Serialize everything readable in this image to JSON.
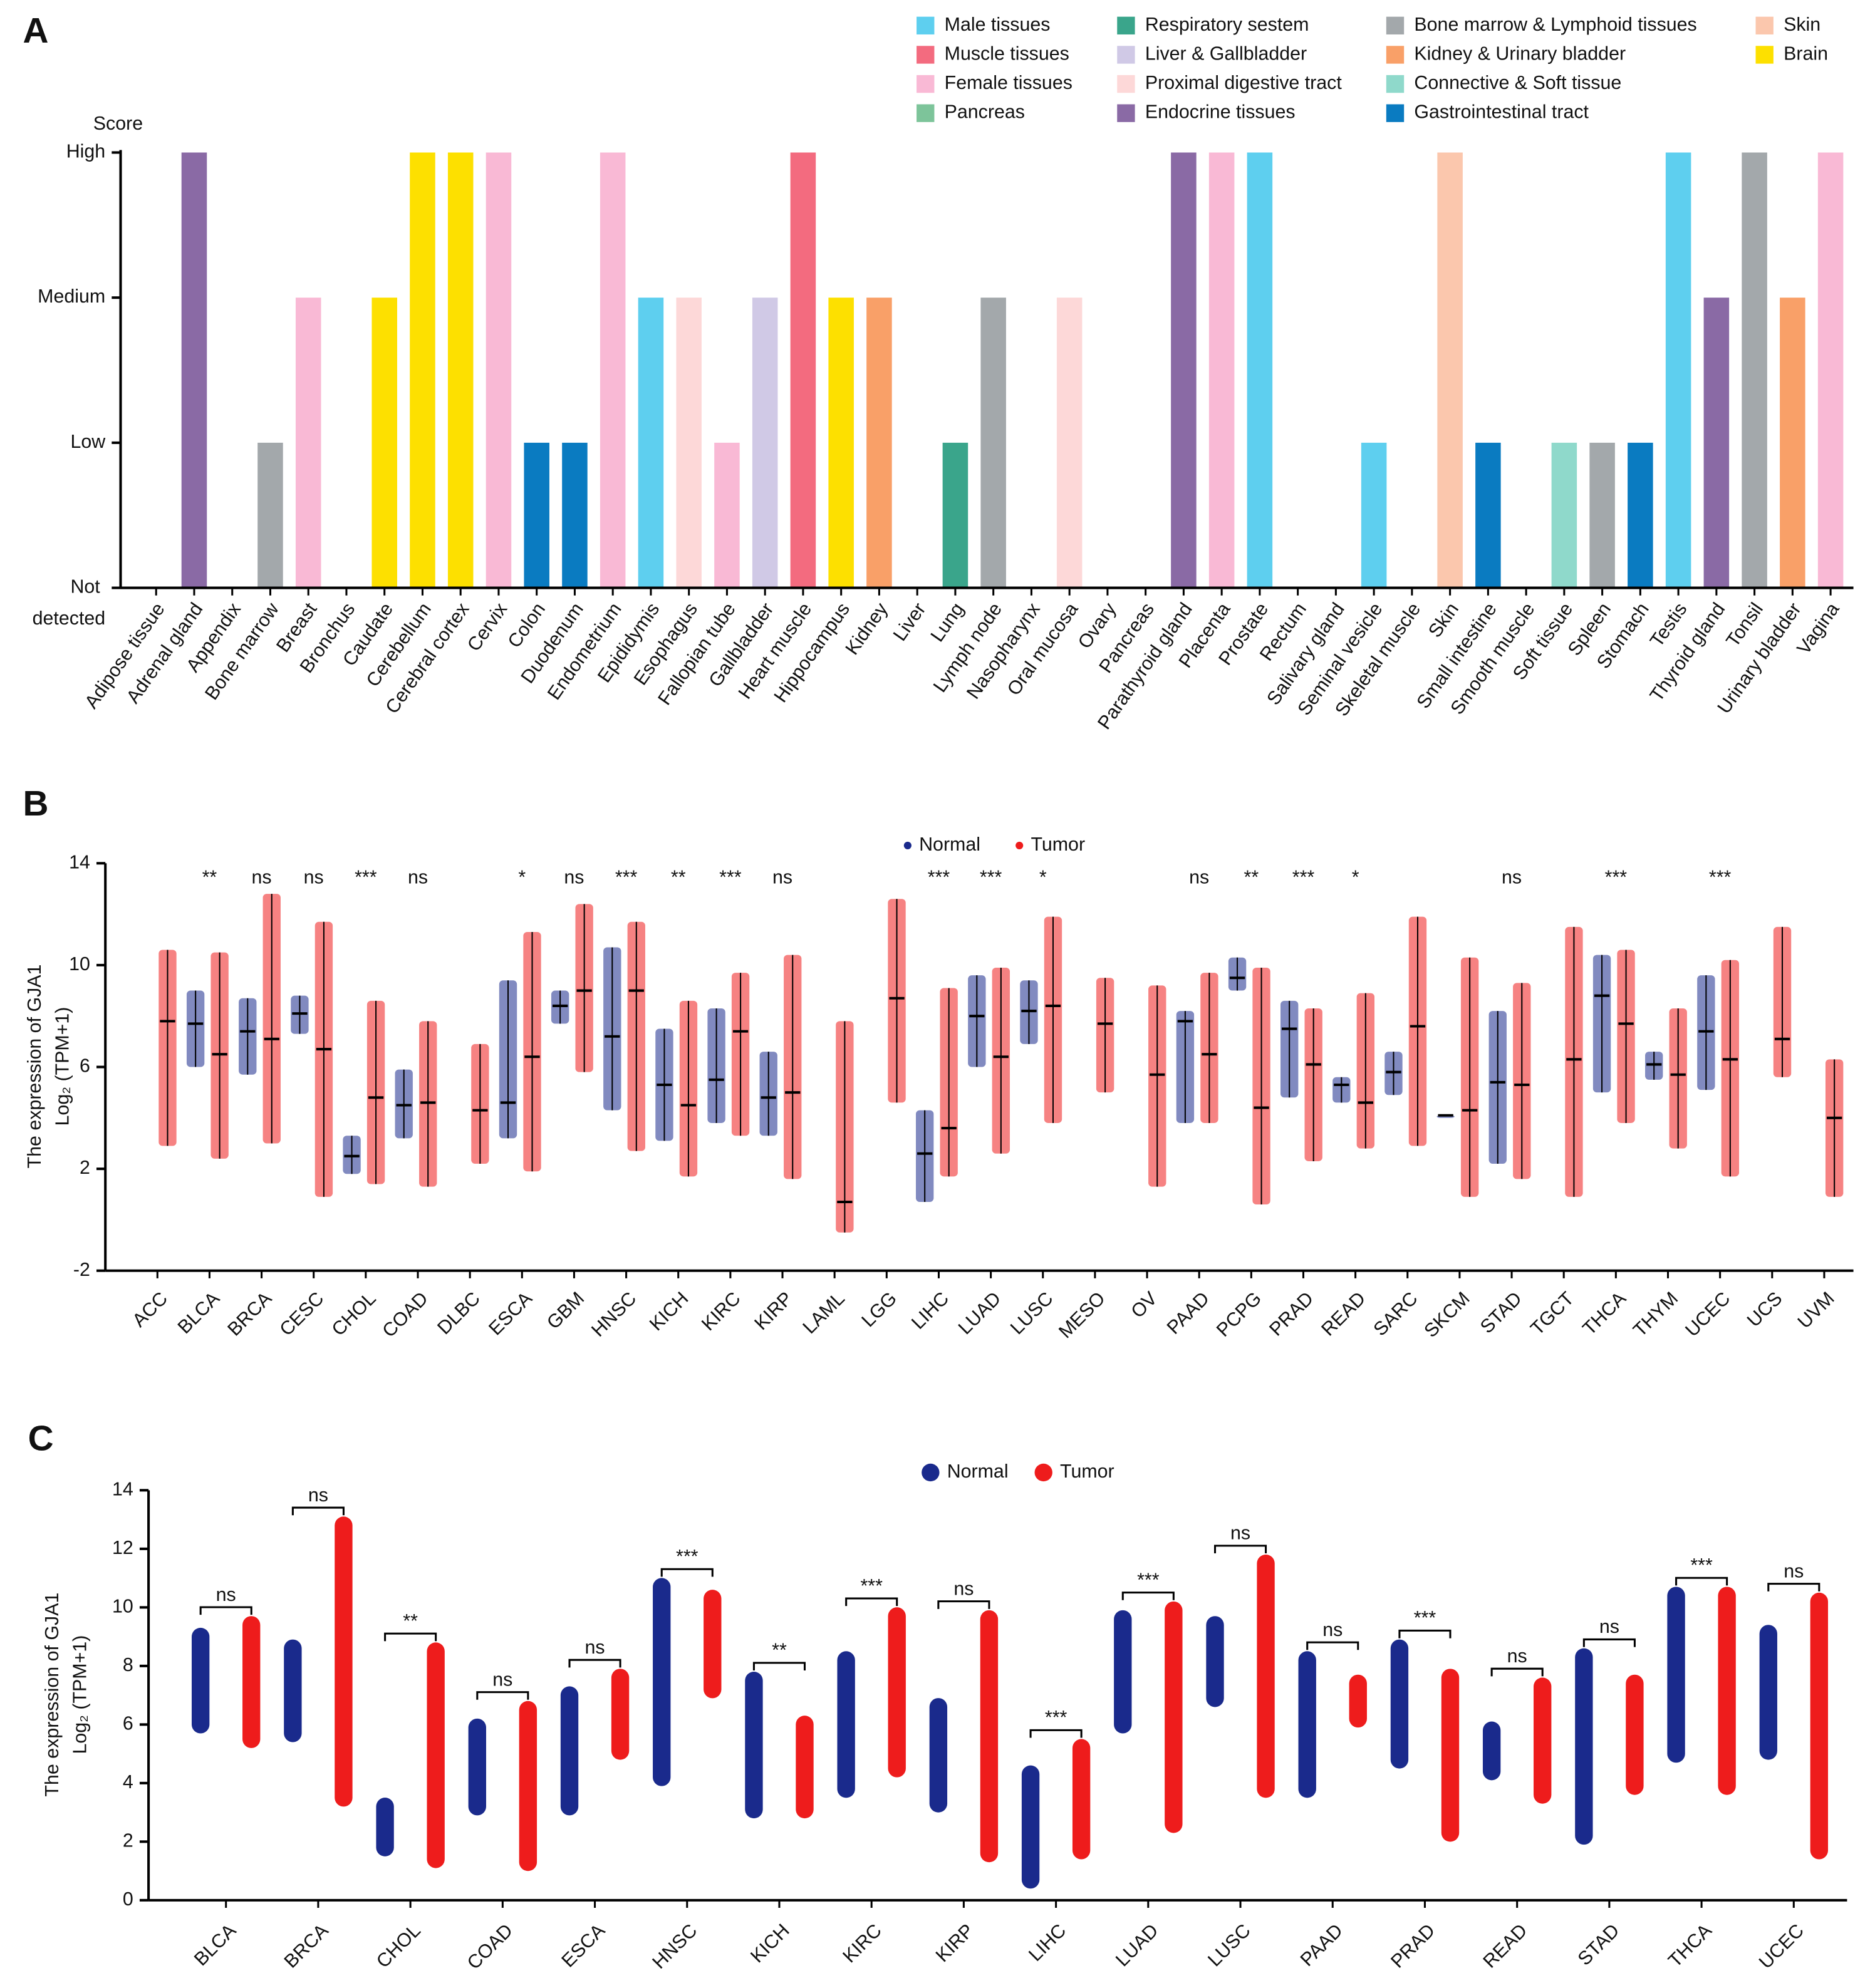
{
  "chart_data": [
    {
      "type": "bar",
      "panel": "A",
      "y_label": "Score",
      "categories": [
        "Adipose tissue",
        "Adrenal gland",
        "Appendix",
        "Bone marrow",
        "Breast",
        "Bronchus",
        "Caudate",
        "Cerebellum",
        "Cerebral cortex",
        "Cervix",
        "Colon",
        "Duodenum",
        "Endometrium",
        "Epididymis",
        "Esophagus",
        "Fallopian tube",
        "Gallbladder",
        "Heart muscle",
        "Hippocampus",
        "Kidney",
        "Liver",
        "Lung",
        "Lymph node",
        "Nasopharynx",
        "Oral mucosa",
        "Ovary",
        "Pancreas",
        "Parathyroid gland",
        "Placenta",
        "Prostate",
        "Rectum",
        "Salivary gland",
        "Seminal vesicle",
        "Skeletal muscle",
        "Skin",
        "Small intestine",
        "Smooth muscle",
        "Soft tissue",
        "Spleen",
        "Stomach",
        "Testis",
        "Thyroid gland",
        "Tonsil",
        "Urinary bladder",
        "Vagina"
      ],
      "values": [
        0,
        3,
        0,
        1,
        2,
        0,
        2,
        3,
        3,
        3,
        1,
        1,
        3,
        2,
        2,
        1,
        2,
        3,
        2,
        2,
        0,
        1,
        2,
        0,
        2,
        0,
        0,
        3,
        3,
        3,
        0,
        0,
        1,
        0,
        3,
        1,
        0,
        1,
        1,
        1,
        3,
        2,
        3,
        2,
        3
      ],
      "colors": [
        "#8a6aa5",
        "#8a6aa5",
        "#0a7bc1",
        "#a3a8ab",
        "#f9b9d5",
        "#3aa58b",
        "#fde000",
        "#fde000",
        "#fde000",
        "#f9b9d5",
        "#0a7bc1",
        "#0a7bc1",
        "#f9b9d5",
        "#5ecfef",
        "#fdd8d8",
        "#f9b9d5",
        "#d0c9e6",
        "#f36b7f",
        "#fde000",
        "#f9a068",
        "#d0c9e6",
        "#3aa58b",
        "#a3a8ab",
        "#3aa58b",
        "#fdd8d8",
        "#f9b9d5",
        "#7dc49a",
        "#8a6aa5",
        "#f9b9d5",
        "#5ecfef",
        "#0a7bc1",
        "#fdd8d8",
        "#5ecfef",
        "#f36b7f",
        "#fbc7ad",
        "#0a7bc1",
        "#f36b7f",
        "#8fd9cb",
        "#a3a8ab",
        "#0a7bc1",
        "#5ecfef",
        "#8a6aa5",
        "#a3a8ab",
        "#f9a068",
        "#f9b9d5"
      ],
      "legend": [
        {
          "name": "Male tissues",
          "color": "#5ecfef"
        },
        {
          "name": "Muscle tissues",
          "color": "#f36b7f"
        },
        {
          "name": "Female tissues",
          "color": "#f9b9d5"
        },
        {
          "name": "Pancreas",
          "color": "#7dc49a"
        },
        {
          "name": "Respiratory sestem",
          "color": "#3aa58b"
        },
        {
          "name": "Liver & Gallbladder",
          "color": "#d0c9e6"
        },
        {
          "name": "Proximal digestive tract",
          "color": "#fdd8d8"
        },
        {
          "name": "Endocrine tissues",
          "color": "#8a6aa5"
        },
        {
          "name": "Bone marrow & Lymphoid tissues",
          "color": "#a3a8ab"
        },
        {
          "name": "Kidney & Urinary bladder",
          "color": "#f9a068"
        },
        {
          "name": "Connective & Soft tissue",
          "color": "#8fd9cb"
        },
        {
          "name": "Gastrointestinal tract",
          "color": "#0a7bc1"
        },
        {
          "name": "Skin",
          "color": "#fbc7ad"
        },
        {
          "name": "Brain",
          "color": "#fde000"
        }
      ],
      "ylim": [
        0,
        3
      ],
      "yticks": [
        {
          "value": 0,
          "label": "Not detected"
        },
        {
          "value": 1,
          "label": "Low"
        },
        {
          "value": 2,
          "label": "Medium"
        },
        {
          "value": 3,
          "label": "High"
        }
      ]
    },
    {
      "type": "strip",
      "panel": "B",
      "y_label": [
        "The expression of GJA1",
        "Log₂ (TPM+1)"
      ],
      "categories": [
        "ACC",
        "BLCA",
        "BRCA",
        "CESC",
        "CHOL",
        "COAD",
        "DLBC",
        "ESCA",
        "GBM",
        "HNSC",
        "KICH",
        "KIRC",
        "KIRP",
        "LAML",
        "LGG",
        "LIHC",
        "LUAD",
        "LUSC",
        "MESO",
        "OV",
        "PAAD",
        "PCPG",
        "PRAD",
        "READ",
        "SARC",
        "SKCM",
        "STAD",
        "TGCT",
        "THCA",
        "THYM",
        "UCEC",
        "UCS",
        "UVM"
      ],
      "significance": [
        null,
        "**",
        "ns",
        "ns",
        "***",
        "ns",
        null,
        "*",
        "ns",
        "***",
        "**",
        "***",
        "ns",
        null,
        null,
        "***",
        "***",
        "*",
        null,
        null,
        "ns",
        "**",
        "***",
        "*",
        null,
        null,
        "ns",
        null,
        "***",
        null,
        "***",
        null,
        null
      ],
      "series": [
        {
          "name": "Normal",
          "color": "#1a2a8c",
          "min": [
            null,
            6.0,
            5.7,
            7.3,
            1.8,
            3.2,
            null,
            3.2,
            7.7,
            4.3,
            3.1,
            3.8,
            3.3,
            null,
            null,
            0.7,
            6.0,
            6.9,
            null,
            null,
            3.8,
            9.0,
            4.8,
            4.6,
            4.9,
            4.1,
            2.2,
            null,
            5.0,
            5.5,
            5.1,
            null,
            null
          ],
          "median": [
            null,
            7.7,
            7.4,
            8.1,
            2.5,
            4.5,
            null,
            4.6,
            8.4,
            7.2,
            5.3,
            5.5,
            4.8,
            null,
            null,
            2.6,
            8.0,
            8.2,
            null,
            null,
            7.8,
            9.5,
            7.5,
            5.3,
            5.8,
            4.1,
            5.4,
            null,
            8.8,
            6.1,
            7.4,
            null,
            null
          ],
          "max": [
            null,
            9.0,
            8.7,
            8.8,
            3.3,
            5.9,
            null,
            9.4,
            9.0,
            10.7,
            7.5,
            8.3,
            6.6,
            null,
            null,
            4.3,
            9.6,
            9.4,
            null,
            null,
            8.2,
            10.3,
            8.6,
            5.6,
            6.6,
            4.1,
            8.2,
            null,
            10.4,
            6.6,
            9.6,
            null,
            null
          ]
        },
        {
          "name": "Tumor",
          "color": "#ee1c1c",
          "min": [
            2.9,
            2.4,
            3.0,
            0.9,
            1.4,
            1.3,
            2.2,
            1.9,
            5.8,
            2.7,
            1.7,
            3.3,
            1.6,
            -0.5,
            4.6,
            1.7,
            2.6,
            3.8,
            5.0,
            1.3,
            3.8,
            0.6,
            2.3,
            2.8,
            2.9,
            0.9,
            1.6,
            0.9,
            3.8,
            2.8,
            1.7,
            5.6,
            0.9
          ],
          "median": [
            7.8,
            6.5,
            7.1,
            6.7,
            4.8,
            4.6,
            4.3,
            6.4,
            9.0,
            9.0,
            4.5,
            7.4,
            5.0,
            0.7,
            8.7,
            3.6,
            6.4,
            8.4,
            7.7,
            5.7,
            6.5,
            4.4,
            6.1,
            4.6,
            7.6,
            4.3,
            5.3,
            6.3,
            7.7,
            5.7,
            6.3,
            7.1,
            4.0
          ],
          "max": [
            10.6,
            10.5,
            12.8,
            11.7,
            8.6,
            7.8,
            6.9,
            11.3,
            12.4,
            11.7,
            8.6,
            9.7,
            10.4,
            7.8,
            12.6,
            9.1,
            9.9,
            11.9,
            9.5,
            9.2,
            9.7,
            9.9,
            8.3,
            8.9,
            11.9,
            10.3,
            9.3,
            11.5,
            10.6,
            8.3,
            10.2,
            11.5,
            6.3
          ]
        }
      ],
      "ylim": [
        -2,
        14
      ],
      "yticks": [
        -2,
        2,
        6,
        10,
        14
      ]
    },
    {
      "type": "paired",
      "panel": "C",
      "y_label": [
        "The expression of GJA1",
        "Log₂ (TPM+1)"
      ],
      "categories": [
        "BLCA",
        "BRCA",
        "CHOL",
        "COAD",
        "ESCA",
        "HNSC",
        "KICH",
        "KIRC",
        "KIRP",
        "LIHC",
        "LUAD",
        "LUSC",
        "PAAD",
        "PRAD",
        "READ",
        "STAD",
        "THCA",
        "UCEC"
      ],
      "significance": [
        "ns",
        "ns",
        "**",
        "ns",
        "ns",
        "***",
        "**",
        "***",
        "ns",
        "***",
        "***",
        "ns",
        "ns",
        "***",
        "ns",
        "ns",
        "***",
        "ns"
      ],
      "series": [
        {
          "name": "Normal",
          "color": "#1a2a8c",
          "min": [
            6.0,
            5.7,
            1.8,
            3.2,
            3.2,
            4.2,
            3.1,
            3.8,
            3.3,
            0.7,
            6.0,
            6.9,
            3.8,
            4.8,
            4.4,
            2.2,
            5.0,
            5.1
          ],
          "max": [
            9.0,
            8.6,
            3.2,
            5.9,
            7.0,
            10.7,
            7.5,
            8.2,
            6.6,
            4.3,
            9.6,
            9.4,
            8.2,
            8.6,
            5.8,
            8.3,
            10.4,
            9.1
          ]
        },
        {
          "name": "Tumor",
          "color": "#ee1c1c",
          "min": [
            5.5,
            3.5,
            1.4,
            1.3,
            5.1,
            7.2,
            3.1,
            4.5,
            1.6,
            1.7,
            2.6,
            3.8,
            6.2,
            2.3,
            3.6,
            3.9,
            3.9,
            1.7
          ],
          "max": [
            9.4,
            12.8,
            8.5,
            6.5,
            7.6,
            10.3,
            6.0,
            9.7,
            9.6,
            5.2,
            9.9,
            11.5,
            7.4,
            7.6,
            7.3,
            7.4,
            10.4,
            10.2
          ]
        }
      ],
      "ylim": [
        0,
        14
      ],
      "yticks": [
        0,
        2,
        4,
        6,
        8,
        10,
        12,
        14
      ]
    }
  ]
}
